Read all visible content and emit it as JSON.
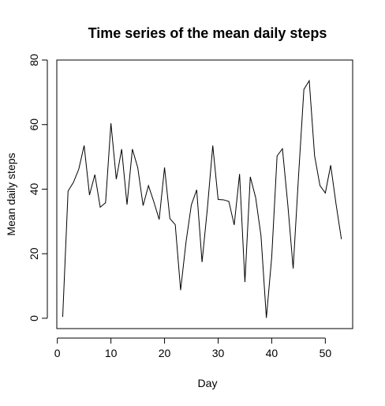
{
  "chart_data": {
    "type": "line",
    "title": "Time series of the mean daily steps",
    "xlabel": "Day",
    "ylabel": "Mean daily steps",
    "xlim": [
      -0.1,
      55.1
    ],
    "ylim": [
      -3.2,
      80
    ],
    "xticks": [
      0,
      10,
      20,
      30,
      40,
      50
    ],
    "yticks": [
      0,
      20,
      40,
      60,
      80
    ],
    "grid": false,
    "line_color": "#000000",
    "series": [
      {
        "x": [
          1,
          2,
          3,
          4,
          5,
          6,
          7,
          8,
          9,
          10,
          11,
          12,
          13,
          14,
          15,
          16,
          17,
          18,
          19,
          20,
          21,
          22,
          23,
          24,
          25,
          26,
          27,
          28,
          29,
          30,
          31,
          32,
          33,
          34,
          35,
          36,
          37,
          38,
          39,
          40,
          41,
          42,
          43,
          44,
          45,
          46,
          47,
          48,
          49,
          50,
          51,
          52,
          53
        ],
        "values": [
          0.4,
          39.4,
          42.1,
          46.2,
          53.5,
          38.2,
          44.5,
          34.4,
          35.8,
          60.4,
          43.1,
          52.4,
          35.2,
          52.4,
          46.7,
          34.9,
          41.1,
          36.1,
          30.6,
          46.7,
          30.9,
          29.0,
          8.7,
          23.5,
          35.1,
          39.8,
          17.4,
          34.1,
          53.5,
          36.8,
          36.7,
          36.2,
          28.9,
          44.7,
          11.2,
          43.8,
          37.4,
          25.5,
          0.1,
          19.0,
          50.3,
          52.5,
          35.2,
          15.4,
          44.0,
          70.9,
          73.6,
          50.3,
          41.1,
          38.8,
          47.4,
          35.4,
          24.5
        ]
      }
    ]
  }
}
